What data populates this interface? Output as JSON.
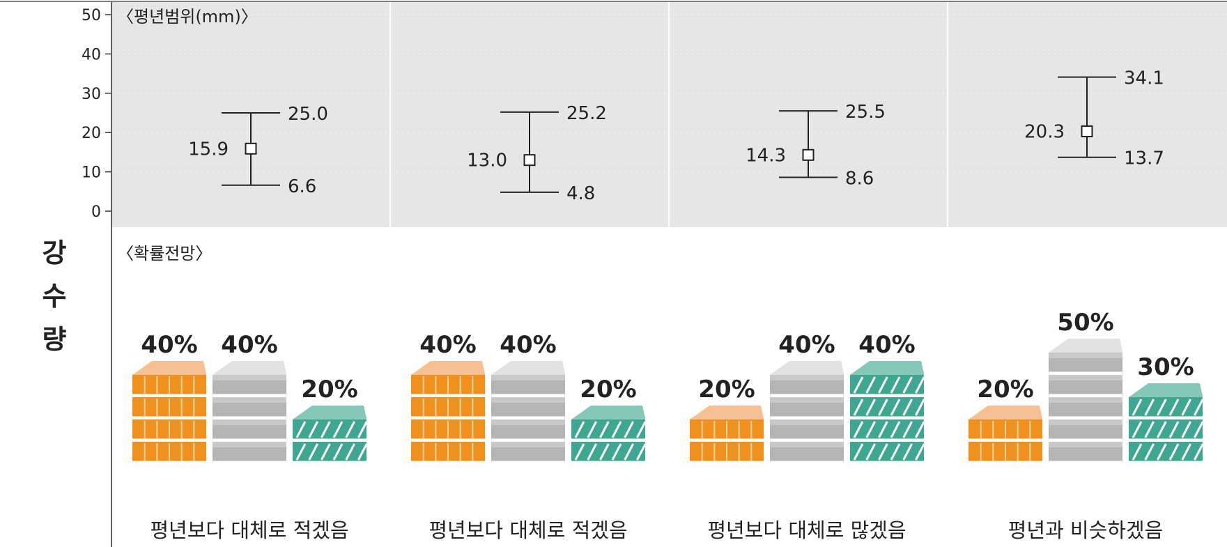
{
  "side_label": [
    "강",
    "수",
    "량"
  ],
  "range_section": {
    "title": "〈평년범위(mm)〉",
    "y_ticks": [
      "0",
      "10",
      "20",
      "30",
      "40",
      "50"
    ]
  },
  "prob_section": {
    "title": "〈확률전망〉"
  },
  "chart_data": {
    "type": "errorbar + stacked-blocks",
    "ylim": [
      0,
      50
    ],
    "ranges": [
      {
        "low": 6.6,
        "mid": 15.9,
        "high": 25.0,
        "low_label": "6.6",
        "mid_label": "15.9",
        "high_label": "25.0"
      },
      {
        "low": 4.8,
        "mid": 13.0,
        "high": 25.2,
        "low_label": "4.8",
        "mid_label": "13.0",
        "high_label": "25.2"
      },
      {
        "low": 8.6,
        "mid": 14.3,
        "high": 25.5,
        "low_label": "8.6",
        "mid_label": "14.3",
        "high_label": "25.5"
      },
      {
        "low": 13.7,
        "mid": 20.3,
        "high": 34.1,
        "low_label": "13.7",
        "mid_label": "20.3",
        "high_label": "34.1"
      }
    ],
    "outlooks": [
      {
        "caption": "평년보다 대체로 적겠음",
        "below": 40,
        "normal": 40,
        "above": 20,
        "labels": [
          "40%",
          "40%",
          "20%"
        ]
      },
      {
        "caption": "평년보다 대체로 적겠음",
        "below": 40,
        "normal": 40,
        "above": 20,
        "labels": [
          "40%",
          "40%",
          "20%"
        ]
      },
      {
        "caption": "평년보다 대체로 많겠음",
        "below": 20,
        "normal": 40,
        "above": 40,
        "labels": [
          "20%",
          "40%",
          "40%"
        ]
      },
      {
        "caption": "평년과 비슷하겠음",
        "below": 20,
        "normal": 50,
        "above": 30,
        "labels": [
          "20%",
          "50%",
          "30%"
        ]
      }
    ],
    "colors": {
      "below_front": "#f0901f",
      "below_top": "#f5c193",
      "normal_front": "#b5b5b5",
      "normal_top": "#e2e2e2",
      "above_front": "#3fa791",
      "above_top": "#85c9b9",
      "panel_bg": "#e6e6e6"
    }
  }
}
